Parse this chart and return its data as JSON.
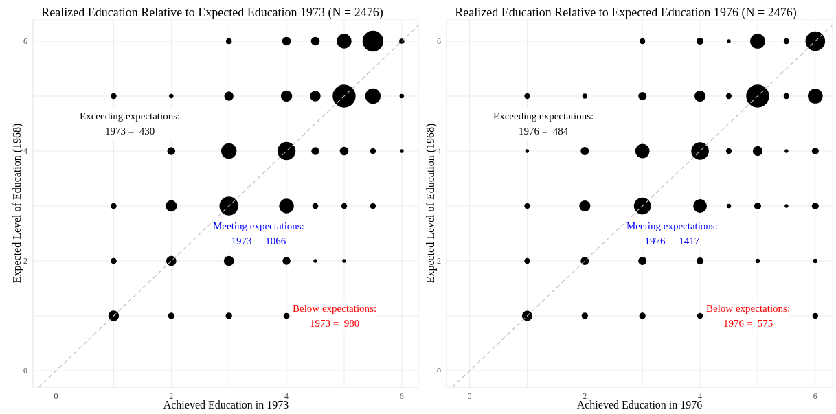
{
  "chart_data": [
    {
      "type": "bubble",
      "title": "Realized Education Relative to Expected Education 1973 (N = 2476)",
      "xlabel": "Achieved Education in 1973",
      "ylabel": "Expected Level of Education (1968)",
      "xlim": [
        -0.4,
        6.3
      ],
      "ylim": [
        -0.3,
        6.4
      ],
      "xticks": [
        0,
        {
          "value": 1,
          "label": null
        },
        2,
        {
          "value": 3,
          "label": null
        },
        4,
        {
          "value": 5,
          "label": null
        },
        6
      ],
      "yticks": [
        0,
        {
          "value": 1,
          "label": null
        },
        2,
        {
          "value": 3,
          "label": null
        },
        4,
        {
          "value": 5,
          "label": null
        },
        6
      ],
      "grid": true,
      "annotations": [
        "Exceeding expectations:\n1973 =  430",
        "Meeting expectations:\n1973 =  1066",
        "Below expectations:\n1973 =  980"
      ],
      "series": [
        {
          "color": "#000000",
          "marker": "circle",
          "x": [
            3,
            4,
            4.5,
            5,
            5.5,
            6,
            1,
            2,
            3,
            4,
            4.5,
            5,
            5.5,
            6,
            2,
            3,
            4,
            4.5,
            5,
            5.5,
            6,
            1,
            2,
            3,
            4,
            4.5,
            5,
            5.5,
            1,
            2,
            3,
            4,
            4.5,
            5,
            1,
            2,
            3,
            4
          ],
          "values": [
            6,
            6,
            6,
            6,
            6,
            6,
            5,
            5,
            5,
            5,
            5,
            5,
            5,
            5,
            4,
            4,
            4,
            4,
            4,
            4,
            4,
            3,
            3,
            3,
            3,
            3,
            3,
            3,
            2,
            2,
            2,
            2,
            2,
            2,
            1,
            1,
            1,
            1
          ],
          "sizes": [
            0.05,
            0.12,
            0.12,
            0.39,
            0.82,
            0.035,
            0.05,
            0.025,
            0.14,
            0.22,
            0.19,
            1,
            0.43,
            0.025,
            0.1,
            0.43,
            0.61,
            0.1,
            0.12,
            0.05,
            0.016,
            0.05,
            0.22,
            0.66,
            0.39,
            0.05,
            0.05,
            0.05,
            0.05,
            0.17,
            0.17,
            0.1,
            0.016,
            0.016,
            0.19,
            0.06,
            0.06,
            0.05
          ]
        },
        {
          "type": "line",
          "color": "#bebebe",
          "line_style": "dashed",
          "x": [
            -0.3,
            6.3
          ],
          "values": [
            -0.3,
            6.3
          ]
        }
      ]
    },
    {
      "type": "bubble",
      "title": "Realized Education Relative to Expected Education 1976 (N = 2476)",
      "xlabel": "Achieved Education in 1976",
      "ylabel": "Expected Level of Education (1968)",
      "xlim": [
        -0.4,
        6.3
      ],
      "ylim": [
        -0.3,
        6.4
      ],
      "xticks": [
        0,
        {
          "value": 1,
          "label": null
        },
        2,
        {
          "value": 3,
          "label": null
        },
        4,
        {
          "value": 5,
          "label": null
        },
        6
      ],
      "yticks": [
        0,
        {
          "value": 1,
          "label": null
        },
        2,
        {
          "value": 3,
          "label": null
        },
        4,
        {
          "value": 5,
          "label": null
        },
        6
      ],
      "grid": true,
      "annotations": [
        "Exceeding expectations:\n1976 =  484",
        "Meeting expectations:\n1976 =  1417",
        "Below expectations:\n1976 =  575"
      ],
      "series": [
        {
          "color": "#000000",
          "marker": "circle",
          "x": [
            3,
            4,
            4.5,
            5,
            5.5,
            6,
            1,
            2,
            3,
            4,
            4.5,
            5,
            5.5,
            6,
            1,
            2,
            3,
            4,
            4.5,
            5,
            5.5,
            6,
            1,
            2,
            3,
            4,
            4.5,
            5,
            5.5,
            6,
            1,
            2,
            3,
            4,
            5,
            6,
            1,
            2,
            3,
            4,
            6
          ],
          "values": [
            6,
            6,
            6,
            6,
            6,
            6,
            5,
            5,
            5,
            5,
            5,
            5,
            5,
            5,
            4,
            4,
            4,
            4,
            4,
            4,
            4,
            4,
            3,
            3,
            3,
            3,
            3,
            3,
            3,
            3,
            2,
            2,
            2,
            2,
            2,
            2,
            1,
            1,
            1,
            1,
            1
          ],
          "sizes": [
            0.045,
            0.074,
            0.015,
            0.4,
            0.045,
            0.72,
            0.045,
            0.033,
            0.11,
            0.21,
            0.045,
            1,
            0.045,
            0.4,
            0.015,
            0.11,
            0.37,
            0.57,
            0.045,
            0.16,
            0.015,
            0.074,
            0.045,
            0.21,
            0.53,
            0.33,
            0.023,
            0.074,
            0.015,
            0.074,
            0.045,
            0.11,
            0.11,
            0.074,
            0.023,
            0.023,
            0.18,
            0.059,
            0.059,
            0.045,
            0.045
          ]
        },
        {
          "type": "line",
          "color": "#bebebe",
          "line_style": "dashed",
          "x": [
            -0.3,
            6.3
          ],
          "values": [
            -0.3,
            6.3
          ]
        }
      ]
    }
  ]
}
